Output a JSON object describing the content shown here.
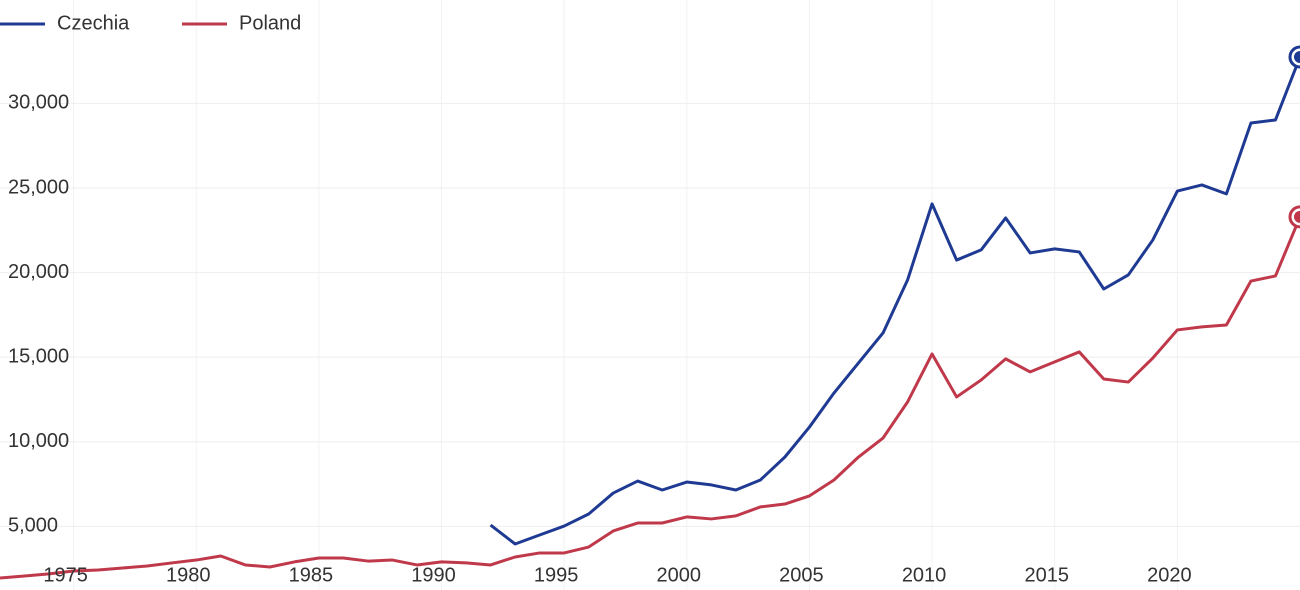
{
  "chart_data": {
    "type": "line",
    "xlim": [
      1972,
      2025
    ],
    "xticks": [
      1975,
      1980,
      1985,
      1990,
      1995,
      2000,
      2005,
      2010,
      2015,
      2020
    ],
    "ylim": [
      1240,
      36110
    ],
    "yticks": [
      {
        "value": 5000,
        "label": "5,000"
      },
      {
        "value": 10000,
        "label": "10,000"
      },
      {
        "value": 15000,
        "label": "15,000"
      },
      {
        "value": 20000,
        "label": "20,000"
      },
      {
        "value": 25000,
        "label": "25,000"
      },
      {
        "value": 30000,
        "label": "30,000"
      }
    ],
    "grid": true,
    "legend": "top-left",
    "series": [
      {
        "name": "Czechia",
        "color": "#1f3a93",
        "x": [
          1992,
          1993,
          1994,
          1995,
          1996,
          1997,
          1998,
          1999,
          2000,
          2001,
          2002,
          2003,
          2004,
          2005,
          2006,
          2007,
          2008,
          2009,
          2010,
          2011,
          2012,
          2013,
          2014,
          2015,
          2016,
          2017,
          2018,
          2019,
          2020,
          2021,
          2022,
          2023,
          2024,
          2025
        ],
        "values": [
          5080,
          3960,
          4490,
          5020,
          5730,
          6970,
          7680,
          7150,
          7620,
          7450,
          7150,
          7740,
          9100,
          10870,
          12880,
          14660,
          16430,
          19560,
          24060,
          20740,
          21340,
          23230,
          21160,
          21400,
          21220,
          19030,
          19860,
          21930,
          24820,
          25180,
          24650,
          28840,
          29020,
          32740
        ]
      },
      {
        "name": "Poland",
        "color": "#c0394b",
        "x": [
          1972,
          1973,
          1974,
          1975,
          1976,
          1977,
          1978,
          1979,
          1980,
          1981,
          1982,
          1983,
          1984,
          1985,
          1986,
          1987,
          1988,
          1989,
          1990,
          1991,
          1992,
          1993,
          1994,
          1995,
          1996,
          1997,
          1998,
          1999,
          2000,
          2001,
          2002,
          2003,
          2004,
          2005,
          2006,
          2007,
          2008,
          2009,
          2010,
          2011,
          2012,
          2013,
          2014,
          2015,
          2016,
          2017,
          2018,
          2019,
          2020,
          2021,
          2022,
          2023,
          2024,
          2025
        ],
        "values": [
          1950,
          2070,
          2190,
          2360,
          2420,
          2540,
          2660,
          2840,
          3010,
          3250,
          2720,
          2600,
          2900,
          3130,
          3130,
          2950,
          3010,
          2720,
          2900,
          2840,
          2720,
          3190,
          3430,
          3430,
          3780,
          4730,
          5200,
          5200,
          5560,
          5440,
          5620,
          6150,
          6320,
          6800,
          7740,
          9100,
          10220,
          12350,
          15190,
          12650,
          13650,
          14900,
          14130,
          14720,
          15310,
          13710,
          13530,
          14950,
          16610,
          16790,
          16900,
          19500,
          19800,
          23290
        ]
      }
    ]
  }
}
